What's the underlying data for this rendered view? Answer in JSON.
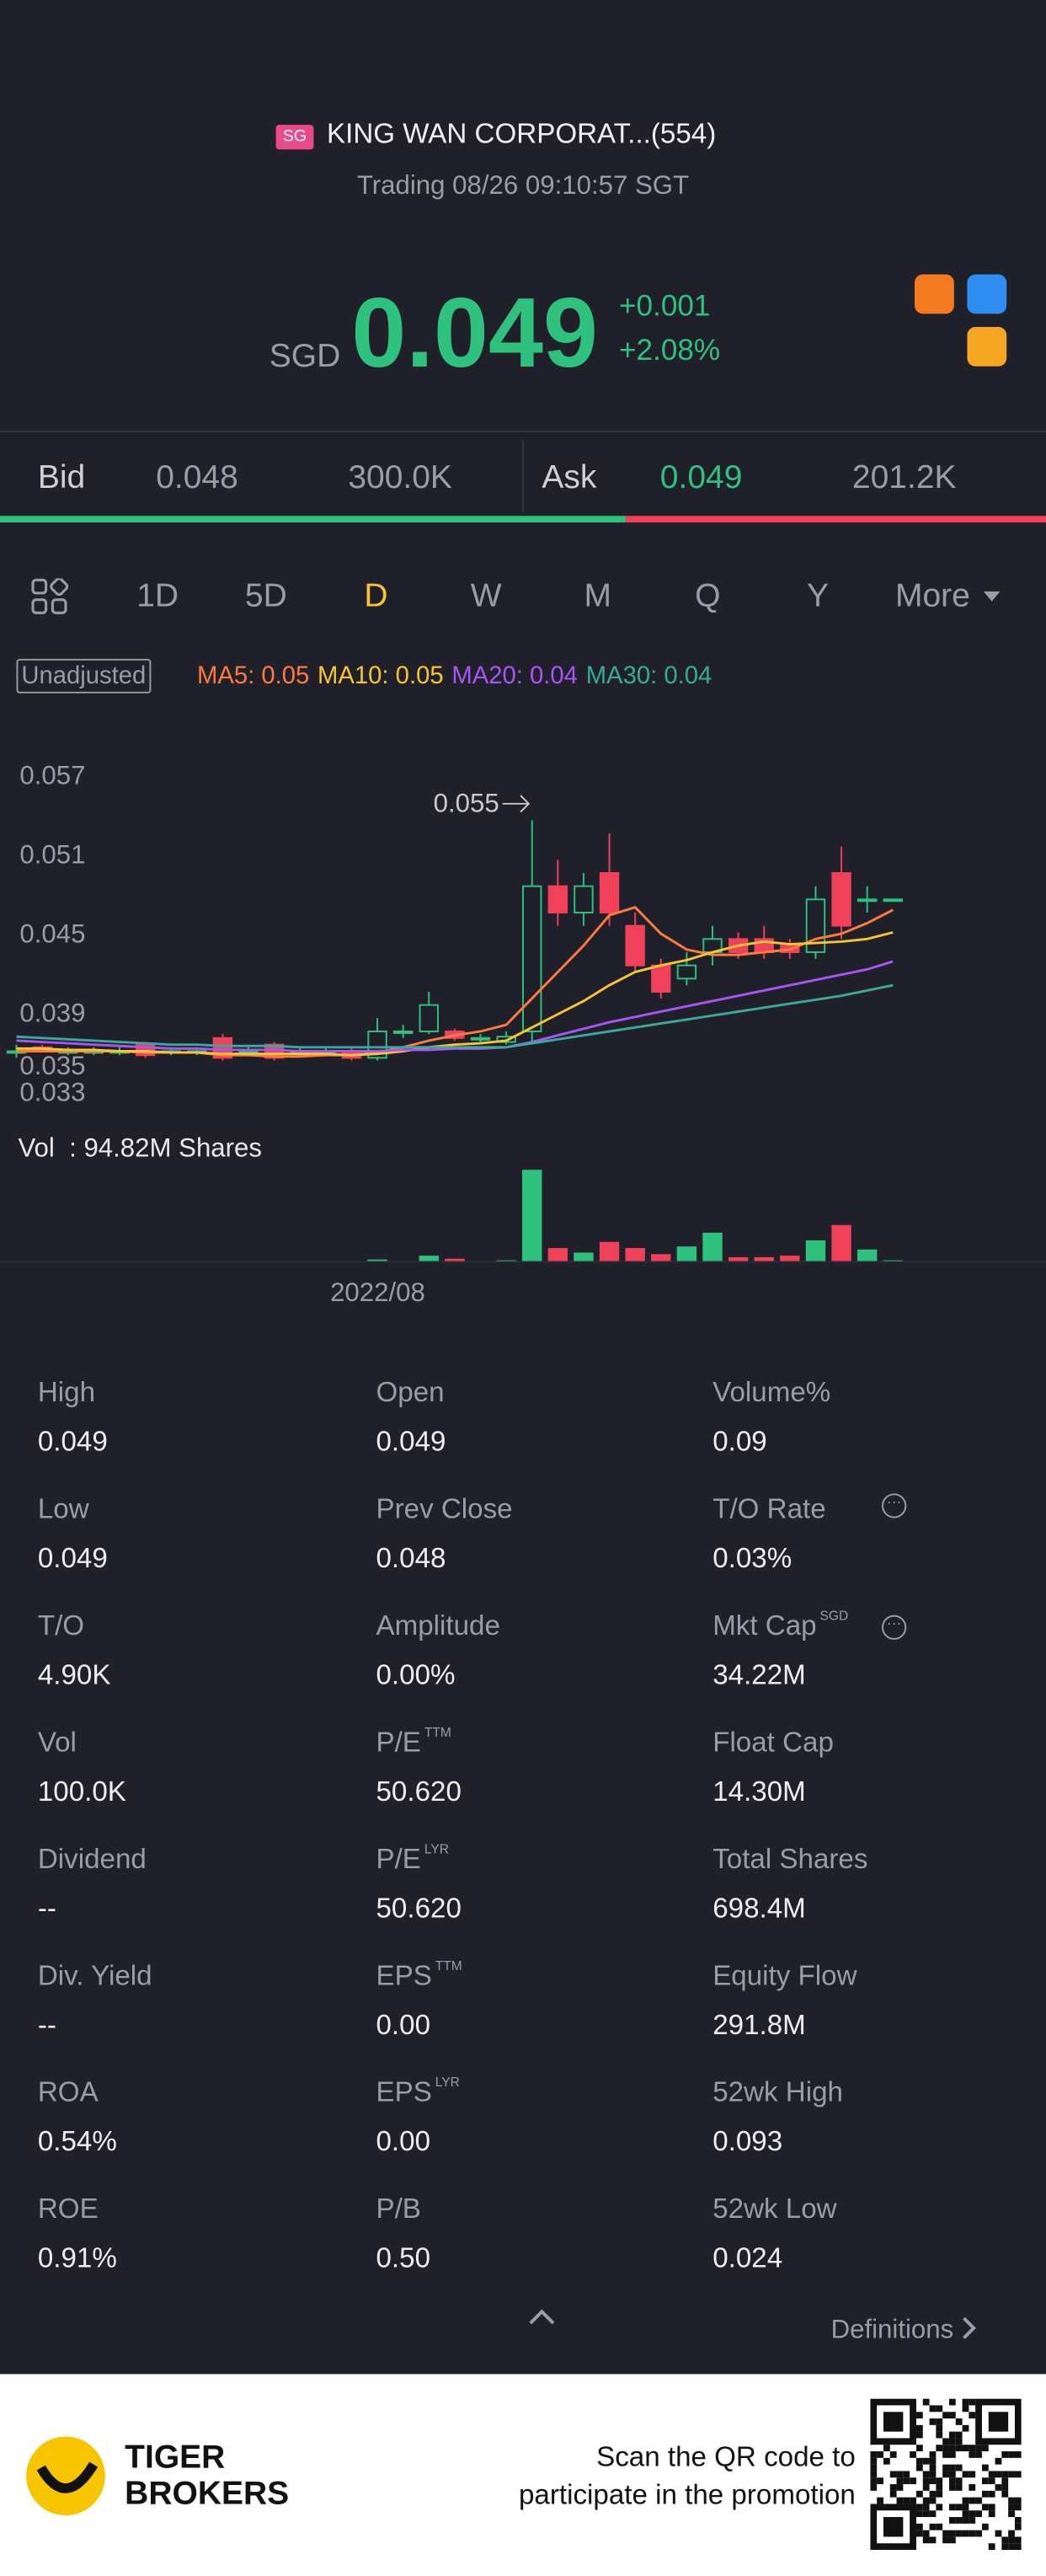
{
  "header": {
    "badge": "SG",
    "name": "KING WAN CORPORAT...(554)",
    "status": "Trading 08/26 09:10:57 SGT"
  },
  "quote": {
    "currency": "SGD",
    "price": "0.049",
    "change": "+0.001",
    "change_pct": "+2.08%"
  },
  "orderbook": {
    "bid_label": "Bid",
    "bid": "0.048",
    "bid_size": {
      "value": 300000,
      "label": "300.0K"
    },
    "ask_label": "Ask",
    "ask": "0.049",
    "ask_size": {
      "value": 201200,
      "label": "201.2K"
    },
    "bid_color": "#2fc27f",
    "ask_color": "#f0405a"
  },
  "tabs": {
    "items": [
      "1D",
      "5D",
      "D",
      "W",
      "M",
      "Q",
      "Y",
      "More"
    ],
    "active": 2
  },
  "chart": {
    "type": "candlestick",
    "adjust_label": "Unadjusted",
    "up_color": "#2fc27f",
    "down_color": "#f0405a",
    "ylim": [
      0.0325,
      0.0605
    ],
    "yticks": [
      0.057,
      0.051,
      0.045,
      0.039,
      0.035,
      0.033
    ],
    "high_annotation": {
      "label": "0.055",
      "index": 20
    },
    "open": [
      0.0375,
      0.0378,
      0.0375,
      0.0375,
      0.0375,
      0.038,
      0.0375,
      0.0375,
      0.0385,
      0.0375,
      0.038,
      0.0375,
      0.0375,
      0.0375,
      0.037,
      0.039,
      0.039,
      0.039,
      0.0385,
      0.0382,
      0.039,
      0.05,
      0.048,
      0.051,
      0.047,
      0.044,
      0.043,
      0.045,
      0.046,
      0.046,
      0.0455,
      0.045,
      0.051,
      0.049,
      0.049
    ],
    "high": [
      0.038,
      0.038,
      0.0378,
      0.0378,
      0.0378,
      0.0382,
      0.0378,
      0.0378,
      0.0388,
      0.0378,
      0.0382,
      0.0378,
      0.0378,
      0.0378,
      0.04,
      0.0395,
      0.042,
      0.0392,
      0.0388,
      0.039,
      0.055,
      0.052,
      0.051,
      0.054,
      0.048,
      0.0445,
      0.045,
      0.047,
      0.0465,
      0.047,
      0.046,
      0.05,
      0.053,
      0.05,
      0.049
    ],
    "low": [
      0.037,
      0.0374,
      0.0372,
      0.0372,
      0.0372,
      0.037,
      0.0372,
      0.0372,
      0.0368,
      0.0372,
      0.0368,
      0.0372,
      0.0372,
      0.0368,
      0.0368,
      0.0385,
      0.0388,
      0.0383,
      0.0382,
      0.038,
      0.038,
      0.047,
      0.047,
      0.047,
      0.0435,
      0.0415,
      0.0425,
      0.044,
      0.0445,
      0.0445,
      0.0445,
      0.0445,
      0.046,
      0.048,
      0.049
    ],
    "close": [
      0.0375,
      0.0375,
      0.0375,
      0.0375,
      0.0375,
      0.0372,
      0.0375,
      0.0375,
      0.037,
      0.0375,
      0.037,
      0.0375,
      0.0375,
      0.037,
      0.039,
      0.039,
      0.041,
      0.0385,
      0.0385,
      0.0386,
      0.05,
      0.048,
      0.05,
      0.048,
      0.044,
      0.042,
      0.044,
      0.046,
      0.045,
      0.045,
      0.045,
      0.049,
      0.047,
      0.049,
      0.049
    ],
    "ma_series": [
      {
        "name": "MA5: 0.05",
        "color": "#ff7a3d",
        "values": [
          0.0375,
          0.0375,
          0.0375,
          0.0375,
          0.0375,
          0.0374,
          0.0374,
          0.0374,
          0.0372,
          0.0372,
          0.0371,
          0.0371,
          0.0372,
          0.0372,
          0.0374,
          0.0378,
          0.0383,
          0.0387,
          0.039,
          0.0395,
          0.0415,
          0.0435,
          0.0455,
          0.0478,
          0.0484,
          0.0464,
          0.0452,
          0.0448,
          0.0448,
          0.045,
          0.0452,
          0.046,
          0.0464,
          0.0472,
          0.0482
        ]
      },
      {
        "name": "MA10: 0.05",
        "color": "#f7c531",
        "values": [
          0.0377,
          0.0377,
          0.0376,
          0.0376,
          0.0375,
          0.0375,
          0.0374,
          0.0374,
          0.0373,
          0.0373,
          0.0373,
          0.0373,
          0.0373,
          0.0372,
          0.0373,
          0.0375,
          0.0378,
          0.038,
          0.0381,
          0.0383,
          0.0393,
          0.0403,
          0.0413,
          0.0425,
          0.0435,
          0.044,
          0.0444,
          0.045,
          0.0455,
          0.0458,
          0.0456,
          0.0457,
          0.0458,
          0.046,
          0.0465
        ]
      },
      {
        "name": "MA20: 0.04",
        "color": "#a855f7",
        "values": [
          0.0383,
          0.0382,
          0.0381,
          0.038,
          0.0379,
          0.0378,
          0.0377,
          0.0377,
          0.0376,
          0.0376,
          0.0376,
          0.0375,
          0.0375,
          0.0375,
          0.0375,
          0.0376,
          0.0376,
          0.0377,
          0.0377,
          0.0378,
          0.0382,
          0.0387,
          0.0392,
          0.0397,
          0.0401,
          0.0405,
          0.0409,
          0.0413,
          0.0417,
          0.0421,
          0.0425,
          0.0429,
          0.0433,
          0.0437,
          0.0443
        ]
      },
      {
        "name": "MA30: 0.04",
        "color": "#3aa89a",
        "values": [
          0.0386,
          0.0385,
          0.0384,
          0.0383,
          0.0382,
          0.0381,
          0.038,
          0.038,
          0.0379,
          0.0379,
          0.0379,
          0.0378,
          0.0378,
          0.0378,
          0.0378,
          0.0378,
          0.0378,
          0.0378,
          0.0378,
          0.0378,
          0.0381,
          0.0384,
          0.0387,
          0.039,
          0.0393,
          0.0396,
          0.0399,
          0.0402,
          0.0405,
          0.0408,
          0.0411,
          0.0414,
          0.0417,
          0.0421,
          0.0425
        ]
      }
    ],
    "volume_label": "Vol  : 94.82M Shares",
    "volume_ylim": [
      0,
      60
    ],
    "volume": [
      0.3,
      0.2,
      0.2,
      0.2,
      0.2,
      0.5,
      0.2,
      0.2,
      0.4,
      0.2,
      0.3,
      0.2,
      0.2,
      0.3,
      1.5,
      0.3,
      4,
      2,
      0.3,
      1,
      60,
      9,
      6,
      13,
      9,
      5,
      10,
      19,
      3,
      3,
      4,
      14,
      24,
      8,
      1
    ],
    "x_label": "2022/08"
  },
  "stats": {
    "rows": [
      [
        {
          "label": "High",
          "value": "0.049"
        },
        {
          "label": "Open",
          "value": "0.049"
        },
        {
          "label": "Volume%",
          "value": "0.09"
        }
      ],
      [
        {
          "label": "Low",
          "value": "0.049"
        },
        {
          "label": "Prev Close",
          "value": "0.048"
        },
        {
          "label": "T/O Rate",
          "value": "0.03%",
          "info": true
        }
      ],
      [
        {
          "label": "T/O",
          "value": "4.90K"
        },
        {
          "label": "Amplitude",
          "value": "0.00%"
        },
        {
          "label": "Mkt Cap",
          "tag": "SGD",
          "value": "34.22M",
          "info": true
        }
      ],
      [
        {
          "label": "Vol",
          "value": "100.0K"
        },
        {
          "label": "P/E",
          "tag": "TTM",
          "value": "50.620"
        },
        {
          "label": "Float Cap",
          "value": "14.30M"
        }
      ],
      [
        {
          "label": "Dividend",
          "value": "--"
        },
        {
          "label": "P/E",
          "tag": "LYR",
          "value": "50.620"
        },
        {
          "label": "Total Shares",
          "value": "698.4M"
        }
      ],
      [
        {
          "label": "Div. Yield",
          "value": "--"
        },
        {
          "label": "EPS",
          "tag": "TTM",
          "value": "0.00"
        },
        {
          "label": "Equity Flow",
          "value": "291.8M"
        }
      ],
      [
        {
          "label": "ROA",
          "value": "0.54%"
        },
        {
          "label": "EPS",
          "tag": "LYR",
          "value": "0.00"
        },
        {
          "label": "52wk High",
          "value": "0.093"
        }
      ],
      [
        {
          "label": "ROE",
          "value": "0.91%"
        },
        {
          "label": "P/B",
          "value": "0.50"
        },
        {
          "label": "52wk Low",
          "value": "0.024"
        }
      ]
    ]
  },
  "definitions": "Definitions",
  "footer": {
    "brand_1": "TIGER",
    "brand_2": "BROKERS",
    "promo_1": "Scan the QR code to",
    "promo_2": "participate in the promotion"
  }
}
